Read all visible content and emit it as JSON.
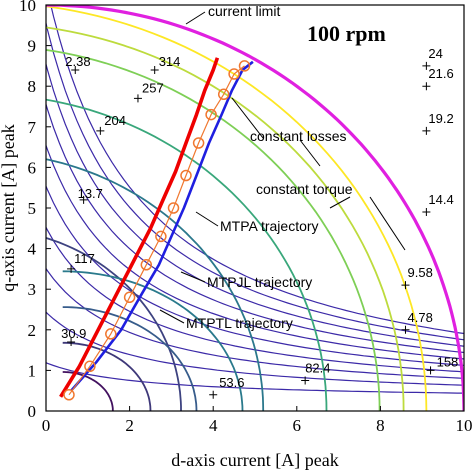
{
  "chart_data": {
    "type": "line",
    "title": "100 rpm",
    "xlabel": "d-axis current [A] peak",
    "ylabel": "q-axis current [A] peak",
    "xlim": [
      0,
      10
    ],
    "ylim": [
      0,
      10
    ],
    "xticks": [
      "0",
      "2",
      "4",
      "6",
      "8",
      "10"
    ],
    "yticks": [
      "0",
      "1",
      "2",
      "3",
      "4",
      "5",
      "6",
      "7",
      "8",
      "9",
      "10"
    ],
    "grid": false,
    "constant_torque_levels": [
      2.38,
      13.7,
      30.9,
      53.6,
      82.4,
      117,
      158,
      204,
      257,
      314
    ],
    "constant_loss_levels": [
      4.78,
      9.58,
      14.4,
      19.2,
      21.6,
      24
    ],
    "current_limit": {
      "name": "current limit",
      "radius": 10
    },
    "series": [
      {
        "name": "MTPA trajectory",
        "color": "#1f1fe0",
        "x": [
          0.6,
          1.2,
          1.8,
          2.3,
          2.7,
          3.0,
          3.3,
          3.6,
          3.9,
          4.2,
          4.45,
          4.7,
          4.95
        ],
        "y": [
          0.5,
          1.2,
          2.0,
          2.9,
          3.6,
          4.3,
          5.0,
          5.8,
          6.6,
          7.3,
          7.9,
          8.4,
          8.6
        ]
      },
      {
        "name": "MTPJL trajectory",
        "color": "#ee0000",
        "x": [
          0.35,
          0.8,
          1.3,
          1.75,
          2.15,
          2.5,
          2.8,
          3.1,
          3.35,
          3.6,
          3.8,
          4.0,
          4.1
        ],
        "y": [
          0.35,
          1.1,
          2.1,
          3.0,
          3.8,
          4.5,
          5.2,
          5.9,
          6.6,
          7.3,
          7.9,
          8.4,
          8.7
        ]
      },
      {
        "name": "MTPTL trajectory",
        "color": "#f07830",
        "x": [
          0.55,
          1.05,
          1.55,
          2.0,
          2.4,
          2.75,
          3.05,
          3.35,
          3.65,
          3.95,
          4.25,
          4.5,
          4.75
        ],
        "y": [
          0.4,
          1.1,
          1.9,
          2.8,
          3.6,
          4.3,
          5.0,
          5.8,
          6.6,
          7.3,
          7.8,
          8.3,
          8.5
        ]
      }
    ],
    "annotations": [
      "current limit",
      "constant losses",
      "constant torque",
      "MTPA trajectory",
      "MTPJL trajectory",
      "MTPTL trajectory"
    ]
  }
}
